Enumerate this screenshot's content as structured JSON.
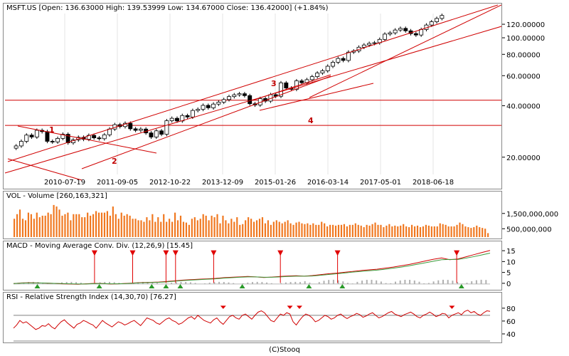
{
  "price_panel": {
    "title": "MSFT.US [Open: 136.63000  High: 139.53999  Low: 134.67000  Close: 136.42000] (+1.84%)"
  },
  "volume_panel": {
    "title": "VOL - Volume [260,163,321]"
  },
  "macd_panel": {
    "title": "MACD - Moving Average Conv. Div. (12,26,9) [15.45]"
  },
  "rsi_panel": {
    "title": "RSI - Relative Strength Index (14,30,70) [76.27]"
  },
  "credit": "(C)Stooq",
  "colors": {
    "up_candle": "#ffffff",
    "down_candle": "#000000",
    "trendline": "#d00000",
    "volume": "#f07820",
    "macd_line": "#d00000",
    "signal_line": "#3a9a3a",
    "histogram": "#b0b0b0",
    "rsi_line": "#d00000",
    "guide": "#808080",
    "sell_marker": "#e00000",
    "buy_marker": "#2a9a2a"
  },
  "chart_data": [
    {
      "type": "candlestick",
      "title": "MSFT.US [Open: 136.63000  High: 139.53999  Low: 134.67000  Close: 136.42000] (+1.84%)",
      "x_tick_labels": [
        "2010-07-19",
        "2011-09-05",
        "2012-10-22",
        "2013-12-09",
        "2015-01-26",
        "2016-03-14",
        "2017-05-01",
        "2018-06-18"
      ],
      "y_tick_labels": [
        "120.00000",
        "100.00000",
        "80.00000",
        "60.00000",
        "40.00000",
        "20.00000"
      ],
      "y_scale": "log",
      "ylim": [
        16,
        140
      ],
      "annotations": [
        "1",
        "2",
        "3",
        "4"
      ],
      "horizontal_levels": [
        43.5,
        31
      ],
      "weekly_close": [
        23.5,
        25,
        27.2,
        26.5,
        29,
        28.5,
        25,
        24.8,
        26,
        27.5,
        24.5,
        25.5,
        26.4,
        25.7,
        27.1,
        26.2,
        25.9,
        27.3,
        29.5,
        31.3,
        30.5,
        31.9,
        29.6,
        29,
        29.5,
        28,
        26.5,
        28.8,
        27.5,
        33,
        34.1,
        32.9,
        35.4,
        34.7,
        37.9,
        38.5,
        40.6,
        39.3,
        41.3,
        42.4,
        43.9,
        45.7,
        46.8,
        47.5,
        46.3,
        41.5,
        40.8,
        44.5,
        43,
        46.9,
        45.9,
        55,
        51.3,
        50.4,
        56.5,
        55.1,
        57.4,
        59.8,
        62.8,
        64.7,
        68.8,
        72.6,
        76.4,
        74.4,
        83.2,
        84.5,
        88.9,
        91.6,
        93.6,
        94.4,
        98.8,
        106.1,
        107.9,
        112.1,
        114.6,
        110.9,
        106.8,
        104.8,
        112.9,
        119.9,
        125.3,
        131,
        136.4
      ],
      "ohlc_last": {
        "open": 136.63,
        "high": 139.53999,
        "low": 134.67,
        "close": 136.42,
        "change_pct": 1.84
      }
    },
    {
      "type": "bar",
      "title": "VOL - Volume [260,163,321]",
      "y_tick_labels": [
        "1,500,000,000",
        "500,000,000"
      ],
      "ylim": [
        0,
        2300000000
      ],
      "last_value": 260163321,
      "values": [
        1200000000.0,
        1500000000.0,
        1800000000.0,
        1200000000.0,
        1100000000.0,
        1600000000.0,
        1500000000.0,
        1200000000.0,
        1600000000.0,
        1300000000.0,
        1400000000.0,
        1400000000.0,
        1600000000.0,
        1500000000.0,
        2100000000.0,
        2000000000.0,
        1800000000.0,
        1400000000.0,
        1500000000.0,
        1600000000.0,
        1100000000.0,
        1500000000.0,
        1500000000.0,
        1500000000.0,
        1300000000.0,
        1300000000.0,
        1600000000.0,
        1400000000.0,
        1500000000.0,
        1700000000.0,
        1600000000.0,
        1600000000.0,
        1600000000.0,
        1700000000.0,
        1400000000.0,
        2000000000.0,
        1500000000.0,
        1200000000.0,
        1600000000.0,
        1400000000.0,
        1500000000.0,
        1400000000.0,
        1200000000.0,
        1200000000.0,
        1100000000.0,
        1100000000.0,
        1000000000.0,
        1300000000.0,
        1100000000.0,
        1500000000.0,
        1000000000.0,
        1300000000.0,
        1000000000.0,
        1500000000.0,
        1000000000.0,
        1200000000.0,
        1000000000.0,
        1600000000.0,
        1100000000.0,
        1400000000.0,
        1000000000.0,
        950000000.0,
        800000000.0,
        1200000000.0,
        1300000000.0,
        1100000000.0,
        1200000000.0,
        1500000000.0,
        1400000000.0,
        1100000000.0,
        1400000000.0,
        1300000000.0,
        1500000000.0,
        900000000.0,
        1400000000.0,
        1100000000.0,
        900000000.0,
        1200000000.0,
        1000000000.0,
        1300000000.0,
        800000000.0,
        850000000.0,
        1100000000.0,
        1300000000.0,
        1200000000.0,
        1000000000.0,
        1100000000.0,
        1200000000.0,
        1300000000.0,
        900000000.0,
        1100000000.0,
        800000000.0,
        1000000000.0,
        1100000000.0,
        1000000000.0,
        900000000.0,
        1000000000.0,
        1100000000.0,
        900000000.0,
        800000000.0,
        950000000.0,
        1000000000.0,
        900000000.0,
        850000000.0,
        900000000.0,
        800000000.0,
        900000000.0,
        800000000.0,
        800000000.0,
        1000000000.0,
        900000000.0,
        700000000.0,
        800000000.0,
        800000000.0,
        750000000.0,
        800000000.0,
        800000000.0,
        850000000.0,
        700000000.0,
        800000000.0,
        800000000.0,
        900000000.0,
        800000000.0,
        750000000.0,
        650000000.0,
        800000000.0,
        750000000.0,
        850000000.0,
        950000000.0,
        800000000.0,
        800000000.0,
        650000000.0,
        750000000.0,
        850000000.0,
        700000000.0,
        750000000.0,
        700000000.0,
        750000000.0,
        850000000.0,
        700000000.0,
        650000000.0,
        800000000.0,
        700000000.0,
        750000000.0,
        650000000.0,
        700000000.0,
        800000000.0,
        750000000.0,
        700000000.0,
        700000000.0,
        700000000.0,
        900000000.0,
        850000000.0,
        800000000.0,
        700000000.0,
        700000000.0,
        700000000.0,
        800000000.0,
        950000000.0,
        850000000.0,
        700000000.0,
        650000000.0,
        600000000.0,
        650000000.0,
        750000000.0,
        650000000.0,
        600000000.0,
        550000000.0,
        260000000.0
      ]
    },
    {
      "type": "line",
      "title": "MACD - Moving Average Conv. Div. (12,26,9) [15.45]",
      "y_tick_labels": [
        "15",
        "10",
        "5",
        "0"
      ],
      "ylim": [
        -2,
        17
      ],
      "last_value": 15.45,
      "series": [
        {
          "values": [
            0.2,
            0.5,
            0.6,
            0.5,
            0.4,
            0.3,
            0.1,
            0.0,
            -0.1,
            0.1,
            0.3,
            0.2,
            0.0,
            0.1,
            0.3,
            0.5,
            0.7,
            0.8,
            0.9,
            1.2,
            1.5,
            1.8,
            2.0,
            2.2,
            2.4,
            2.6,
            2.9,
            3.1,
            3.3,
            3.5,
            3.3,
            3.0,
            3.2,
            3.5,
            3.7,
            3.8,
            3.6,
            3.9,
            4.3,
            4.7,
            5.0,
            5.4,
            5.8,
            6.2,
            6.5,
            6.8,
            7.3,
            7.8,
            8.4,
            9.0,
            9.8,
            10.6,
            11.4,
            12.0,
            11.2,
            11.5,
            12.5,
            13.5,
            14.5,
            15.45
          ]
        },
        {
          "values": [
            0.2,
            0.4,
            0.5,
            0.5,
            0.4,
            0.3,
            0.2,
            0.1,
            0.0,
            0.0,
            0.2,
            0.2,
            0.1,
            0.1,
            0.2,
            0.4,
            0.6,
            0.7,
            0.8,
            1.0,
            1.3,
            1.6,
            1.8,
            2.0,
            2.2,
            2.4,
            2.7,
            2.9,
            3.1,
            3.3,
            3.3,
            3.1,
            3.1,
            3.3,
            3.5,
            3.6,
            3.6,
            3.7,
            4.0,
            4.4,
            4.7,
            5.1,
            5.5,
            5.8,
            6.1,
            6.4,
            6.8,
            7.3,
            7.8,
            8.4,
            9.1,
            9.8,
            10.5,
            11.2,
            11.3,
            11.3,
            11.9,
            12.6,
            13.4,
            14.2
          ]
        }
      ],
      "markers": {
        "sell": [
          0.17,
          0.25,
          0.32,
          0.34,
          0.42,
          0.56,
          0.68,
          0.93
        ],
        "buy": [
          0.05,
          0.18,
          0.29,
          0.32,
          0.35,
          0.48,
          0.62,
          0.69,
          0.94
        ]
      }
    },
    {
      "type": "line",
      "title": "RSI - Relative Strength Index (14,30,70) [76.27]",
      "y_tick_labels": [
        "80",
        "60",
        "40"
      ],
      "ylim": [
        30,
        92
      ],
      "guides": [
        70,
        30
      ],
      "last_value": 76.27,
      "values": [
        50,
        55,
        62,
        58,
        60,
        56,
        52,
        48,
        50,
        54,
        53,
        57,
        52,
        49,
        55,
        60,
        63,
        58,
        54,
        50,
        56,
        58,
        62,
        60,
        57,
        55,
        50,
        56,
        62,
        58,
        55,
        52,
        56,
        60,
        58,
        55,
        57,
        60,
        62,
        58,
        54,
        60,
        66,
        64,
        62,
        58,
        56,
        60,
        64,
        66,
        62,
        60,
        56,
        58,
        62,
        66,
        68,
        64,
        70,
        66,
        62,
        60,
        58,
        63,
        66,
        60,
        56,
        62,
        68,
        70,
        66,
        64,
        70,
        72,
        68,
        64,
        70,
        75,
        77,
        74,
        68,
        62,
        60,
        66,
        72,
        70,
        74,
        72,
        60,
        55,
        62,
        68,
        72,
        70,
        66,
        60,
        62,
        66,
        70,
        68,
        64,
        66,
        70,
        72,
        68,
        65,
        68,
        70,
        73,
        71,
        67,
        69,
        72,
        74,
        70,
        66,
        68,
        71,
        74,
        76,
        72,
        70,
        68,
        71,
        73,
        75,
        72,
        68,
        66,
        70,
        72,
        75,
        72,
        68,
        70,
        73,
        72,
        66,
        70,
        72,
        74,
        71,
        76,
        78,
        74,
        76,
        72,
        70,
        74,
        77,
        76.27
      ],
      "markers": {
        "sell": [
          0.44,
          0.58,
          0.6,
          0.92
        ]
      }
    }
  ]
}
